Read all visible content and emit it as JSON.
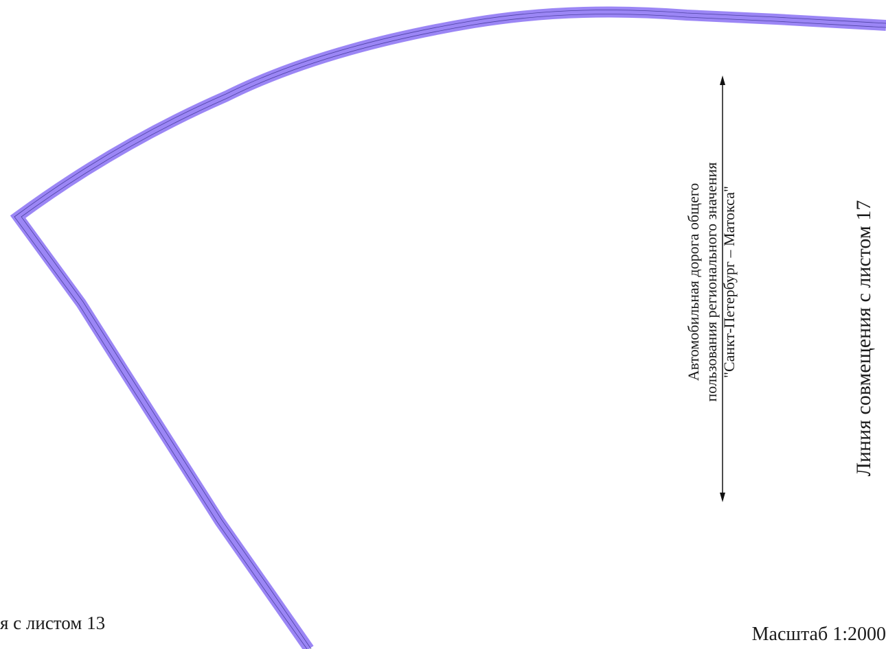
{
  "map": {
    "road_label_lines": [
      "Автомобильная дорога общего",
      "пользования регионального значения",
      "\"Санкт-Петербург – Матокса\""
    ],
    "alignment_line_sheet_17": "Линия совмещения с листом 17",
    "alignment_line_sheet_13": "я с листом 13",
    "scale": "Масштаб 1:2000"
  },
  "colors": {
    "boundary_fill": "#9b86f5",
    "boundary_stroke": "#3a2f8f",
    "leader_line": "#111111",
    "text": "#1a1a1a"
  },
  "icons": {
    "leader_arrow_up": "arrow-up-icon",
    "leader_arrow_down": "arrow-down-icon"
  }
}
